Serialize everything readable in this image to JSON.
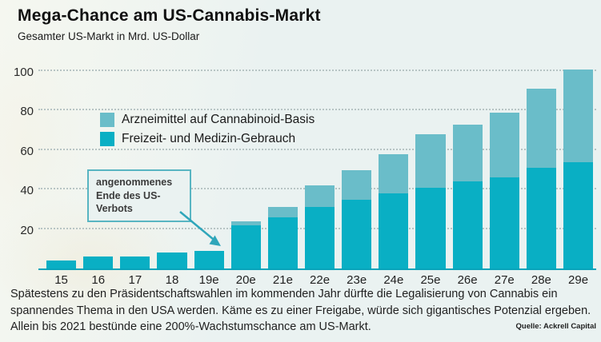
{
  "header": {
    "title": "Mega-Chance am US-Cannabis-Markt",
    "subtitle": "Gesamter US-Markt in Mrd. US-Dollar"
  },
  "colors": {
    "recreational_medical": "#09afc4",
    "cannabinoid_pharma": "#6abdc9",
    "axis_line": "#0aa4ba",
    "annotation_border": "#58b5c2",
    "arrow": "#2fa6ba",
    "background": "#eaf2f1"
  },
  "legend": {
    "items": [
      {
        "label": "Arzneimittel auf Cannabinoid-Basis",
        "color": "#6abdc9"
      },
      {
        "label": "Freizeit- und Medizin-Gebrauch",
        "color": "#09afc4"
      }
    ]
  },
  "annotation": {
    "text": "angenommenes Ende des US-Verbots"
  },
  "chart_data": {
    "type": "bar",
    "stacked": true,
    "title": "Mega-Chance am US-Cannabis-Markt",
    "subtitle": "Gesamter US-Markt in Mrd. US-Dollar",
    "categories": [
      "15",
      "16",
      "17",
      "18",
      "19e",
      "20e",
      "21e",
      "22e",
      "23e",
      "24e",
      "25e",
      "26e",
      "27e",
      "28e",
      "29e"
    ],
    "series": [
      {
        "name": "Freizeit- und Medizin-Gebrauch",
        "color": "#09afc4",
        "values": [
          4,
          6,
          6,
          8,
          9,
          22,
          26,
          31,
          35,
          38,
          41,
          44,
          46,
          51,
          54
        ]
      },
      {
        "name": "Arzneimittel auf Cannabinoid-Basis",
        "color": "#6abdc9",
        "values": [
          0,
          0,
          0,
          0,
          0,
          2,
          5,
          11,
          15,
          20,
          27,
          29,
          33,
          40,
          47
        ]
      }
    ],
    "totals": [
      4,
      6,
      6,
      8,
      9,
      24,
      31,
      42,
      50,
      58,
      68,
      73,
      79,
      91,
      101
    ],
    "xlabel": "",
    "ylabel": "Mrd. US-Dollar",
    "yticks": [
      20,
      40,
      60,
      80,
      100
    ],
    "ylim": [
      0,
      105
    ],
    "grid": "horizontal-dotted",
    "legend_position": "upper-left-inside",
    "annotation": {
      "text": "angenommenes Ende des US-Verbots",
      "points_to": "19e"
    }
  },
  "footer": {
    "text": "Spätestens zu den Präsidentschaftswahlen im kommenden Jahr dürfte die Legalisierung von Cannabis ein spannendes Thema in den USA werden. Käme es zu einer Freigabe, würde sich gigantisches Potenzial ergeben. Allein bis 2021 bestünde eine 200%-Wachstumschance am US-Markt.",
    "source": "Quelle: Ackrell Capital"
  }
}
